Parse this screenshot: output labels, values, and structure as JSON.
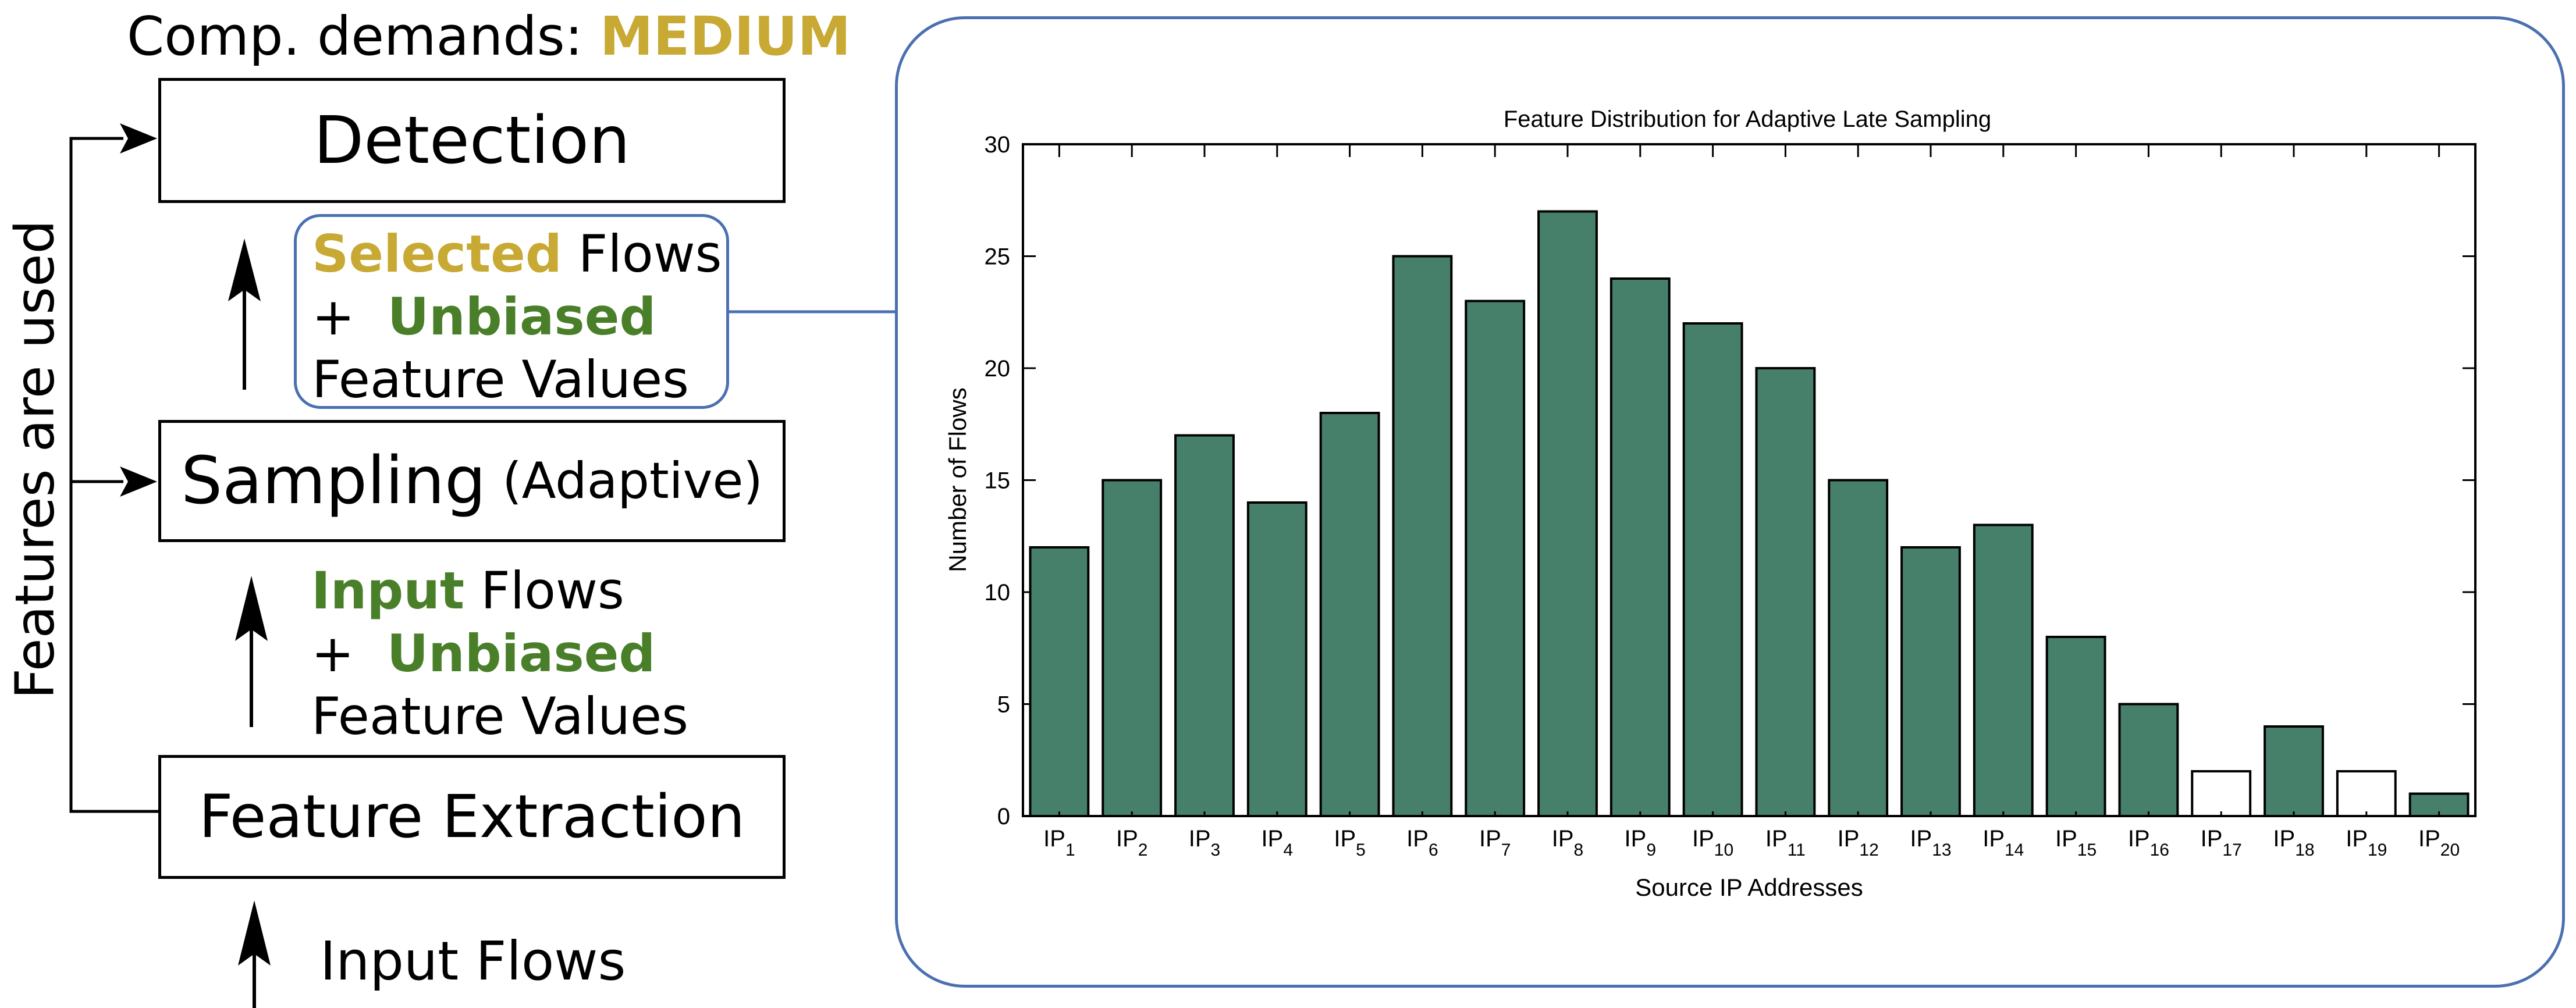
{
  "header": {
    "prefix": "Comp. demands: ",
    "level": "MEDIUM"
  },
  "boxes": {
    "detection": "Detection",
    "sampling": "Sampling",
    "sampling_sub": "(Adaptive)",
    "feature_extraction": "Feature Extraction"
  },
  "selected_block": {
    "line1_highlight": "Selected",
    "line1_rest": " Flows",
    "line2_plus": "+ ",
    "line2_highlight": "Unbiased",
    "line3": "Feature Values"
  },
  "input_block": {
    "line1_highlight": "Input",
    "line1_rest": " Flows",
    "line2_plus": "+ ",
    "line2_highlight": "Unbiased",
    "line3": "Feature Values"
  },
  "side_label": "Features are used",
  "input_flows": "Input Flows",
  "colors": {
    "gold": "#c8a934",
    "green": "#4a7f2a",
    "bar": "#47806a",
    "panel_border": "#4b70b0"
  },
  "chart_data": {
    "type": "bar",
    "title": "Feature Distribution for Adaptive Late Sampling",
    "xlabel": "Source IP Addresses",
    "ylabel": "Number of Flows",
    "ylim": [
      0,
      30
    ],
    "yticks": [
      0,
      5,
      10,
      15,
      20,
      25,
      30
    ],
    "categories": [
      {
        "base": "IP",
        "sub": "1"
      },
      {
        "base": "IP",
        "sub": "2"
      },
      {
        "base": "IP",
        "sub": "3"
      },
      {
        "base": "IP",
        "sub": "4"
      },
      {
        "base": "IP",
        "sub": "5"
      },
      {
        "base": "IP",
        "sub": "6"
      },
      {
        "base": "IP",
        "sub": "7"
      },
      {
        "base": "IP",
        "sub": "8"
      },
      {
        "base": "IP",
        "sub": "9"
      },
      {
        "base": "IP",
        "sub": "10"
      },
      {
        "base": "IP",
        "sub": "11"
      },
      {
        "base": "IP",
        "sub": "12"
      },
      {
        "base": "IP",
        "sub": "13"
      },
      {
        "base": "IP",
        "sub": "14"
      },
      {
        "base": "IP",
        "sub": "15"
      },
      {
        "base": "IP",
        "sub": "16"
      },
      {
        "base": "IP",
        "sub": "17"
      },
      {
        "base": "IP",
        "sub": "18"
      },
      {
        "base": "IP",
        "sub": "19"
      },
      {
        "base": "IP",
        "sub": "20"
      }
    ],
    "values": [
      12,
      15,
      17,
      14,
      18,
      25,
      23,
      27,
      24,
      22,
      20,
      15,
      12,
      13,
      8,
      5,
      2,
      4,
      2,
      1
    ],
    "selected": [
      true,
      true,
      true,
      true,
      true,
      true,
      true,
      true,
      true,
      true,
      true,
      true,
      true,
      true,
      true,
      true,
      false,
      true,
      false,
      true
    ]
  }
}
